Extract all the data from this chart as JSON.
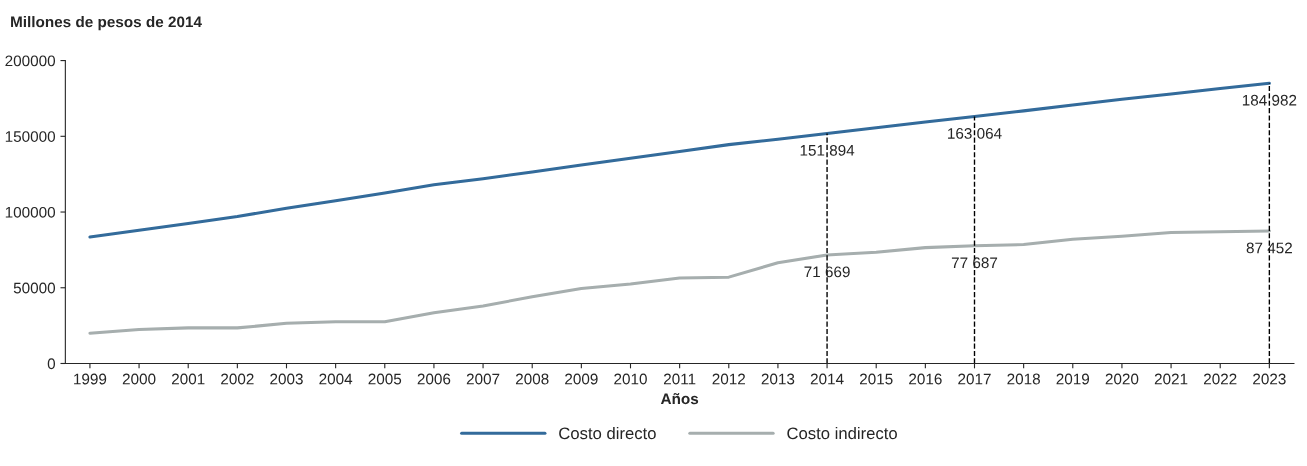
{
  "chart_data": {
    "type": "line",
    "ylabel": "Millones de pesos de 2014",
    "xlabel": "Años",
    "categories": [
      "1999",
      "2000",
      "2001",
      "2002",
      "2003",
      "2004",
      "2005",
      "2006",
      "2007",
      "2008",
      "2009",
      "2010",
      "2011",
      "2012",
      "2013",
      "2014",
      "2015",
      "2016",
      "2017",
      "2018",
      "2019",
      "2020",
      "2021",
      "2022",
      "2023"
    ],
    "series": [
      {
        "name": "Costo directo",
        "color": "#336b9b",
        "values": [
          83500,
          88000,
          92500,
          97000,
          102500,
          107500,
          112500,
          118000,
          122000,
          126500,
          131000,
          135500,
          140000,
          144500,
          148000,
          151894,
          155700,
          159400,
          163064,
          166800,
          170700,
          174500,
          178000,
          181500,
          184982
        ],
        "value_labels": [
          null,
          null,
          null,
          null,
          null,
          null,
          null,
          null,
          null,
          null,
          null,
          null,
          null,
          null,
          null,
          "151 894",
          null,
          null,
          "163 064",
          null,
          null,
          null,
          null,
          null,
          "184 982"
        ]
      },
      {
        "name": "Costo indirecto",
        "color": "#a6aeae",
        "values": [
          20000,
          22500,
          23500,
          23500,
          26500,
          27500,
          27500,
          33500,
          38000,
          44000,
          49500,
          52500,
          56500,
          57000,
          66500,
          71669,
          73500,
          76500,
          77687,
          78500,
          82000,
          84000,
          86500,
          87000,
          87452
        ],
        "value_labels": [
          null,
          null,
          null,
          null,
          null,
          null,
          null,
          null,
          null,
          null,
          null,
          null,
          null,
          null,
          null,
          "71 669",
          null,
          null,
          "77 687",
          null,
          null,
          null,
          null,
          null,
          "87 452"
        ]
      }
    ],
    "ylim": [
      0,
      200000
    ],
    "yticks": [
      0,
      50000,
      100000,
      150000,
      200000
    ],
    "ref_lines": [
      {
        "axis": "x",
        "value": "2014",
        "line_style": "dashed",
        "color": "#000000"
      },
      {
        "axis": "x",
        "value": "2017",
        "line_style": "dashed",
        "color": "#000000"
      },
      {
        "axis": "x",
        "value": "2023",
        "line_style": "dashed",
        "color": "#000000"
      }
    ],
    "grid": false,
    "legend": "bottom",
    "marker": "none",
    "line_style": "solid"
  }
}
